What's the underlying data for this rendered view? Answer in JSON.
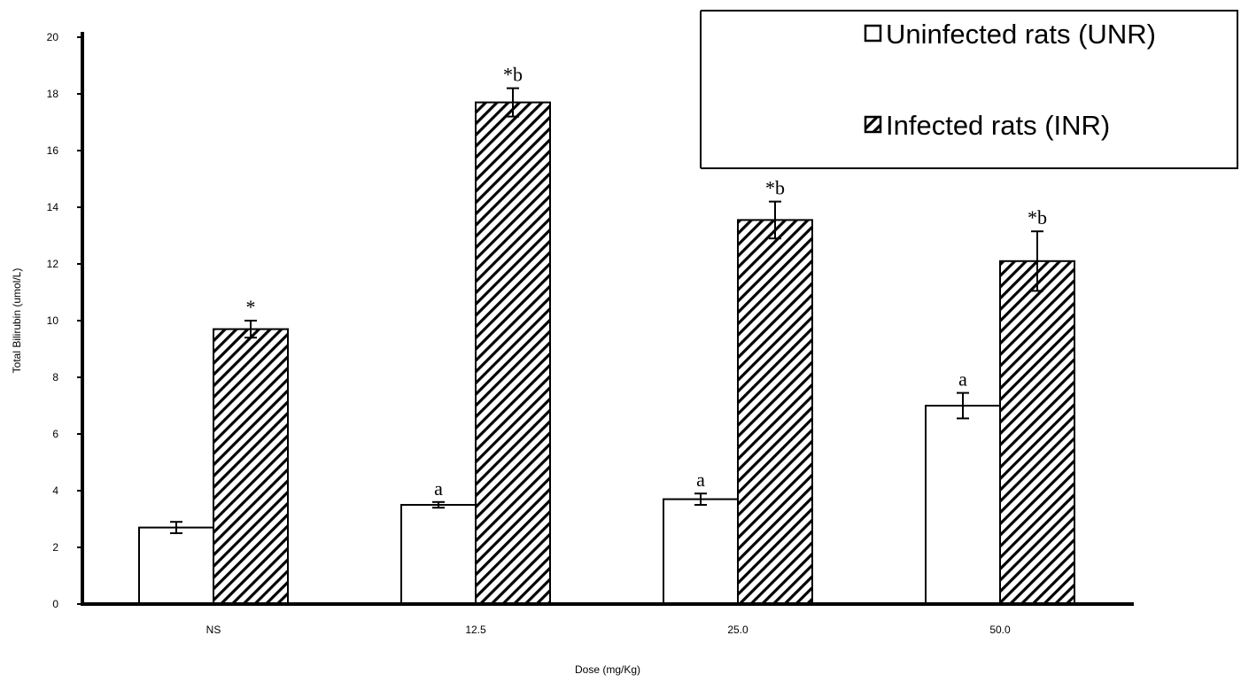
{
  "chart_data": {
    "type": "bar",
    "title": "",
    "xlabel": "Dose (mg/Kg)",
    "ylabel": "Total Bilirubin (umol/L)",
    "ylim": [
      0,
      20
    ],
    "yticks": [
      "0",
      "2",
      "4",
      "6",
      "8",
      "10",
      "12",
      "14",
      "16",
      "18",
      "20"
    ],
    "categories": [
      "NS",
      "12.5",
      "25.0",
      "50.0"
    ],
    "series": [
      {
        "name": "Uninfected rats (UNR)",
        "pattern": "none",
        "color": "#ffffff",
        "values": [
          2.7,
          3.5,
          3.7,
          7.0
        ],
        "errors": [
          0.2,
          0.1,
          0.2,
          0.45
        ],
        "annotations": [
          "",
          "a",
          "a",
          "a"
        ]
      },
      {
        "name": "Infected rats (INR)",
        "pattern": "diagonal-hatch",
        "color": "#000000",
        "values": [
          9.7,
          17.7,
          13.55,
          12.1
        ],
        "errors": [
          0.3,
          0.5,
          0.65,
          1.05
        ],
        "annotations": [
          "*",
          "*b",
          "*b",
          "*b"
        ]
      }
    ],
    "legend_position": "top-right",
    "grid": false
  }
}
